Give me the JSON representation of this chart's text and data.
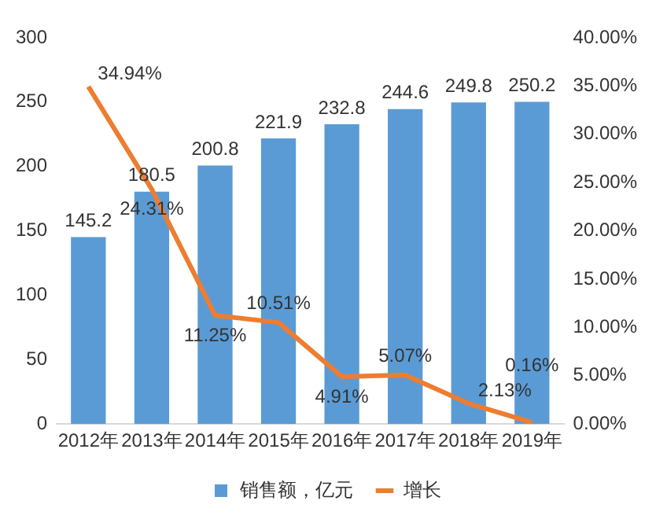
{
  "chart_data": {
    "type": "bar",
    "categories": [
      "2012年",
      "2013年",
      "2014年",
      "2015年",
      "2016年",
      "2017年",
      "2018年",
      "2019年"
    ],
    "series": [
      {
        "name": "销售额，亿元",
        "color": "#5b9bd5",
        "values": [
          145.2,
          180.5,
          200.8,
          221.9,
          232.8,
          244.6,
          249.8,
          250.2
        ],
        "value_labels": [
          "145.2",
          "180.5",
          "200.8",
          "221.9",
          "232.8",
          "244.6",
          "249.8",
          "250.2"
        ]
      },
      {
        "name": "增长",
        "type": "line",
        "axis": "y2",
        "color": "#ed7d31",
        "values": [
          34.94,
          24.31,
          11.25,
          10.51,
          4.91,
          5.07,
          2.13,
          0.16
        ],
        "value_labels": [
          "34.94%",
          "24.31%",
          "11.25%",
          "10.51%",
          "4.91%",
          "5.07%",
          "2.13%",
          "0.16%"
        ]
      }
    ],
    "ylim": [
      0,
      300
    ],
    "yticks": [
      0,
      50,
      100,
      150,
      200,
      250,
      300
    ],
    "y2lim": [
      0,
      40
    ],
    "y2ticks": [
      {
        "value": 0,
        "label": "0.00%"
      },
      {
        "value": 5,
        "label": "5.00%"
      },
      {
        "value": 10,
        "label": "10.00%"
      },
      {
        "value": 15,
        "label": "15.00%"
      },
      {
        "value": 20,
        "label": "20.00%"
      },
      {
        "value": 25,
        "label": "25.00%"
      },
      {
        "value": 30,
        "label": "30.00%"
      },
      {
        "value": 35,
        "label": "35.00%"
      },
      {
        "value": 40,
        "label": "40.00%"
      }
    ],
    "legend": "bottom",
    "grid": false,
    "marker": "none",
    "line_style": "solid"
  }
}
